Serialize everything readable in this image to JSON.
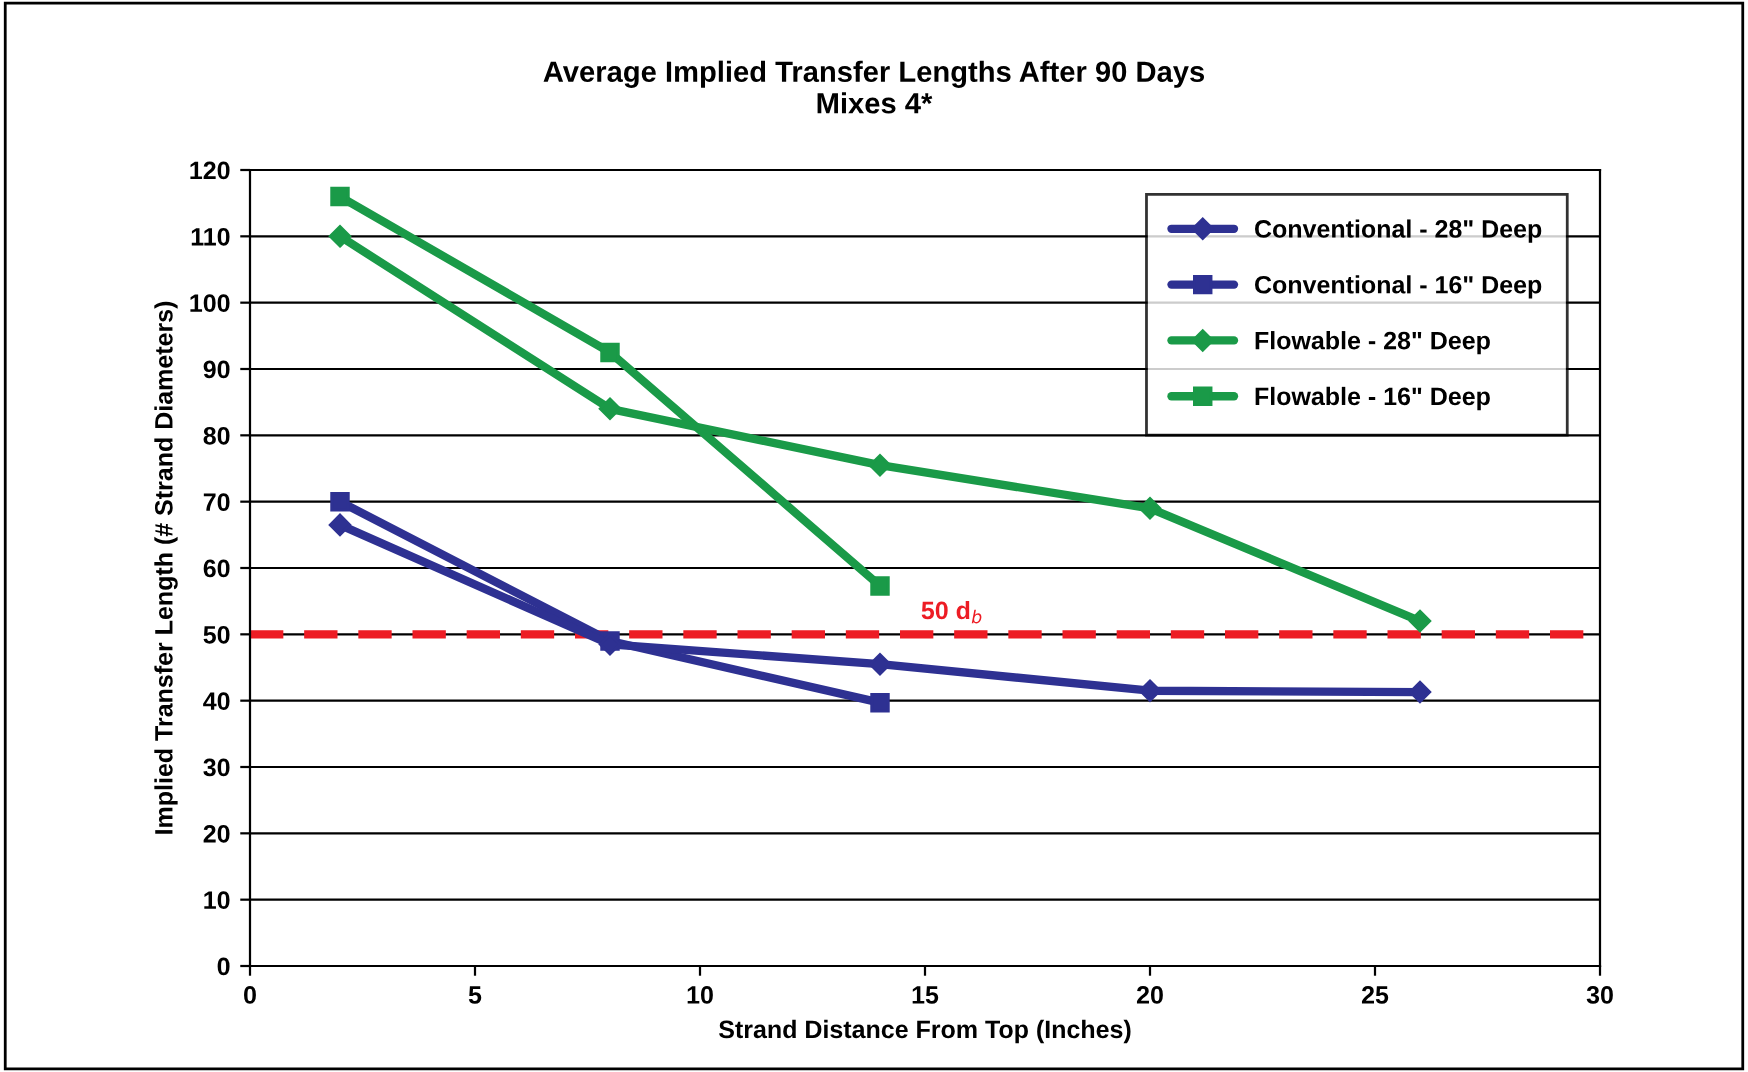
{
  "chart_data": {
    "type": "line",
    "title": "Average Implied Transfer Lengths After 90 Days",
    "subtitle": "Mixes 4*",
    "xlabel": "Strand Distance From Top (Inches)",
    "ylabel": "Implied Transfer Length (# Strand Diameters)",
    "xlim": [
      0,
      30
    ],
    "xticks": [
      0,
      5,
      10,
      15,
      20,
      25,
      30
    ],
    "ylim": [
      0,
      120
    ],
    "yticks": [
      0,
      10,
      20,
      30,
      40,
      50,
      60,
      70,
      80,
      90,
      100,
      110,
      120
    ],
    "grid": "y",
    "legend": "top right",
    "series": [
      {
        "name": "Conventional - 28\" Deep",
        "color": "#2e3192",
        "marker": "diamond",
        "x": [
          2,
          8,
          14,
          20,
          26
        ],
        "values": [
          66.5,
          48.5,
          45.5,
          41.5,
          41.3
        ]
      },
      {
        "name": "Conventional - 16\" Deep",
        "color": "#2e3192",
        "marker": "square",
        "x": [
          2,
          8,
          14
        ],
        "values": [
          70,
          49,
          39.7
        ]
      },
      {
        "name": "Flowable - 28\" Deep",
        "color": "#1a9a48",
        "marker": "diamond",
        "x": [
          2,
          8,
          14,
          20,
          26
        ],
        "values": [
          110,
          84,
          75.5,
          69,
          52
        ]
      },
      {
        "name": "Flowable - 16\" Deep",
        "color": "#1a9a48",
        "marker": "square",
        "x": [
          2,
          8,
          14
        ],
        "values": [
          116,
          92.5,
          57.3
        ]
      }
    ],
    "ref_lines": [
      {
        "axis": "y",
        "value": 50,
        "label": "50 d$_{b}$",
        "color": "#ed1c24",
        "line_style": "dashed"
      }
    ]
  }
}
